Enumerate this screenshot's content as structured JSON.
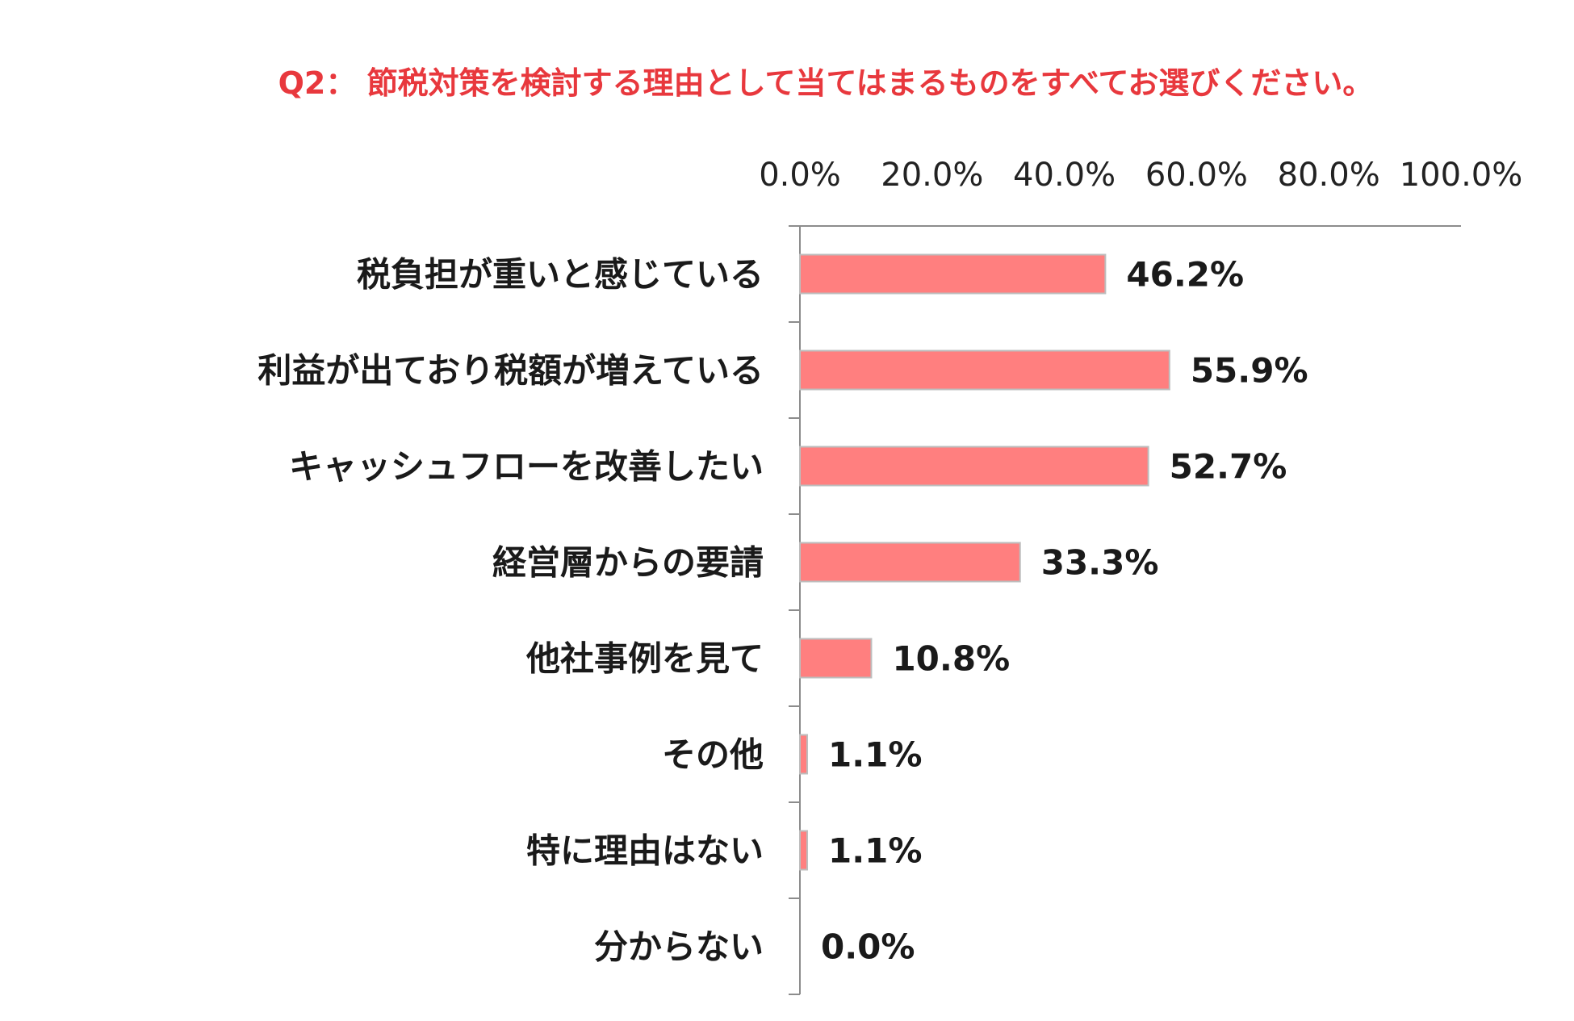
{
  "chart_data": {
    "type": "bar",
    "orientation": "horizontal",
    "title": "Q2： 節税対策を検討する理由として当てはまるものをすべてお選びください。",
    "categories": [
      "税負担が重いと感じている",
      "利益が出ており税額が増えている",
      "キャッシュフローを改善したい",
      "経営層からの要請",
      "他社事例を見て",
      "その他",
      "特に理由はない",
      "分からない"
    ],
    "values": [
      46.2,
      55.9,
      52.7,
      33.3,
      10.8,
      1.1,
      1.1,
      0.0
    ],
    "value_labels": [
      "46.2%",
      "55.9%",
      "52.7%",
      "33.3%",
      "10.8%",
      "1.1%",
      "1.1%",
      "0.0%"
    ],
    "xlim": [
      0,
      100
    ],
    "x_ticks": [
      0,
      20,
      40,
      60,
      80,
      100
    ],
    "x_tick_labels": [
      "0.0%",
      "20.0%",
      "40.0%",
      "60.0%",
      "80.0%",
      "100.0%"
    ],
    "x_axis_position": "top",
    "grid": false,
    "legend": "none",
    "colors": {
      "bar": "#ff7f7f",
      "bar_border": "#bdbdbd",
      "title": "#e8383d",
      "axis": "#8c8c8c"
    }
  }
}
